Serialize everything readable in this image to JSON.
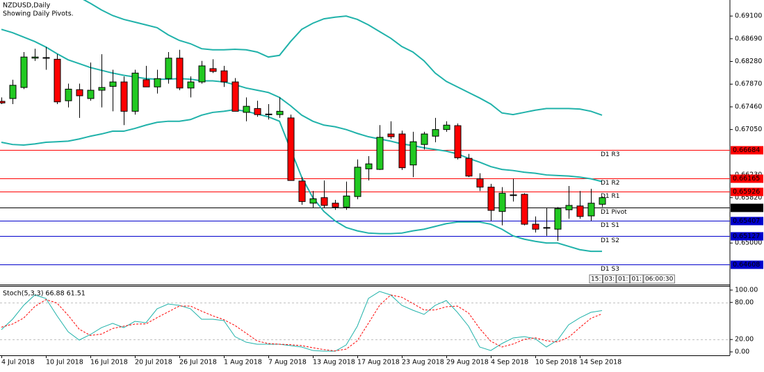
{
  "chart_data": [
    {
      "type": "candlestick",
      "title": "NZDUSD,Daily",
      "subtitle": "Showing Daily Pivots.",
      "categories": [
        "4 Jul 2018",
        null,
        null,
        null,
        "10 Jul 2018",
        null,
        null,
        null,
        "16 Jul 2018",
        null,
        null,
        null,
        "20 Jul 2018",
        null,
        null,
        null,
        "26 Jul 2018",
        null,
        null,
        null,
        "1 Aug 2018",
        null,
        null,
        null,
        "7 Aug 2018",
        null,
        null,
        null,
        "13 Aug 2018",
        null,
        null,
        null,
        "17 Aug 2018",
        null,
        null,
        null,
        "23 Aug 2018",
        null,
        null,
        null,
        "29 Aug 2018",
        null,
        null,
        null,
        "4 Sep 2018",
        null,
        null,
        null,
        "10 Sep 2018",
        null,
        null,
        null,
        "14 Sep 2018",
        null,
        null
      ],
      "open": [
        0.6756,
        0.6761,
        0.6781,
        0.6834,
        0.6835,
        0.6832,
        0.6757,
        0.6777,
        0.6761,
        0.6776,
        0.6783,
        0.6791,
        0.6738,
        0.6795,
        0.6782,
        0.6797,
        0.6834,
        0.678,
        0.6791,
        0.6815,
        0.6811,
        0.6791,
        0.6736,
        0.6743,
        0.6733,
        0.6732,
        0.6726,
        0.6612,
        0.6572,
        0.6582,
        0.6572,
        0.6565,
        0.6584,
        0.6634,
        0.6633,
        0.6697,
        0.6697,
        0.6641,
        0.6678,
        0.6693,
        0.6705,
        0.6712,
        0.6653,
        0.6616,
        0.6601,
        0.6557,
        0.6587,
        0.6588,
        0.6534,
        0.6527,
        0.6525,
        0.656,
        0.6567,
        0.6549,
        0.657
      ],
      "high": [
        0.6763,
        0.6795,
        0.6845,
        0.6851,
        0.6854,
        0.6841,
        0.6788,
        0.6788,
        0.6826,
        0.6841,
        0.6813,
        0.6801,
        0.6813,
        0.682,
        0.6813,
        0.6845,
        0.6849,
        0.6801,
        0.6829,
        0.6832,
        0.682,
        0.6798,
        0.6763,
        0.6757,
        0.6751,
        0.6763,
        0.6732,
        0.6619,
        0.6594,
        0.6613,
        0.6578,
        0.6611,
        0.6651,
        0.6657,
        0.6713,
        0.672,
        0.6703,
        0.6701,
        0.6701,
        0.6726,
        0.672,
        0.6716,
        0.6661,
        0.6626,
        0.6607,
        0.6601,
        0.6616,
        0.659,
        0.6548,
        0.6563,
        0.6565,
        0.6603,
        0.6594,
        0.6598,
        0.6584
      ],
      "low": [
        0.6751,
        0.6751,
        0.6778,
        0.6829,
        0.6813,
        0.6751,
        0.6745,
        0.6726,
        0.6757,
        0.6745,
        0.6738,
        0.6713,
        0.6732,
        0.6782,
        0.677,
        0.6788,
        0.6776,
        0.6763,
        0.6788,
        0.6807,
        0.6782,
        0.6738,
        0.672,
        0.6728,
        0.6723,
        0.6726,
        0.6613,
        0.6569,
        0.6563,
        0.6563,
        0.656,
        0.656,
        0.6579,
        0.6613,
        0.6632,
        0.6688,
        0.6632,
        0.6619,
        0.6669,
        0.6682,
        0.6701,
        0.6651,
        0.6619,
        0.6594,
        0.654,
        0.6532,
        0.6575,
        0.6532,
        0.6519,
        0.6513,
        0.6504,
        0.6544,
        0.6544,
        0.654,
        0.6565
      ],
      "close": [
        0.6753,
        0.6785,
        0.6836,
        0.6836,
        0.6834,
        0.6755,
        0.6778,
        0.6766,
        0.6776,
        0.6781,
        0.6791,
        0.6738,
        0.6807,
        0.6782,
        0.6797,
        0.6834,
        0.678,
        0.6791,
        0.682,
        0.681,
        0.6791,
        0.6738,
        0.6747,
        0.6732,
        0.6732,
        0.6738,
        0.6613,
        0.6575,
        0.658,
        0.6568,
        0.6565,
        0.6585,
        0.6637,
        0.6643,
        0.6691,
        0.6692,
        0.6636,
        0.6683,
        0.6697,
        0.6705,
        0.6713,
        0.6654,
        0.6621,
        0.6601,
        0.6559,
        0.659,
        0.6586,
        0.6534,
        0.6525,
        0.6528,
        0.6562,
        0.6568,
        0.6548,
        0.6572,
        0.6582
      ],
      "up_color": "#22c922",
      "down_color": "#ff0000",
      "bands": [
        {
          "color": "#20b2aa",
          "values": [
            0.6986,
            0.6979,
            0.6971,
            0.6964,
            0.6956,
            0.6951,
            0.6949,
            0.6944,
            0.6933,
            0.6921,
            0.6911,
            0.6904,
            0.6899,
            0.6894,
            0.6889,
            0.6876,
            0.6866,
            0.686,
            0.6851,
            0.6849,
            0.6849,
            0.685,
            0.6849,
            0.6845,
            0.6836,
            0.6839,
            0.6864,
            0.6886,
            0.6897,
            0.6905,
            0.6908,
            0.691,
            0.6904,
            0.6894,
            0.6882,
            0.687,
            0.6855,
            0.6845,
            0.6829,
            0.6807,
            0.6792,
            0.6782,
            0.6772,
            0.6762,
            0.6751,
            0.6735,
            0.6732,
            0.6736,
            0.674,
            0.6743,
            0.6743,
            0.6743,
            0.6742,
            0.6738,
            0.6731
          ]
        },
        {
          "color": "#20b2aa",
          "values": [
            0.6886,
            0.688,
            0.6872,
            0.6864,
            0.6854,
            0.6842,
            0.6831,
            0.6824,
            0.6817,
            0.6812,
            0.6807,
            0.6803,
            0.68,
            0.6797,
            0.6796,
            0.6796,
            0.6797,
            0.6796,
            0.6793,
            0.6793,
            0.6791,
            0.6786,
            0.678,
            0.6776,
            0.6772,
            0.6763,
            0.6748,
            0.6731,
            0.672,
            0.6713,
            0.671,
            0.6705,
            0.6698,
            0.6692,
            0.6688,
            0.6684,
            0.6679,
            0.6676,
            0.6672,
            0.6669,
            0.6666,
            0.6661,
            0.6653,
            0.6646,
            0.6638,
            0.6633,
            0.6631,
            0.6628,
            0.6626,
            0.6623,
            0.6622,
            0.6621,
            0.6619,
            0.6616,
            0.6611
          ]
        },
        {
          "color": "#20b2aa",
          "values": [
            0.6682,
            0.6678,
            0.6677,
            0.6679,
            0.6682,
            0.6683,
            0.6684,
            0.6688,
            0.6693,
            0.6697,
            0.6702,
            0.6702,
            0.6707,
            0.6713,
            0.6718,
            0.672,
            0.672,
            0.6723,
            0.6731,
            0.6736,
            0.6738,
            0.6741,
            0.6738,
            0.6733,
            0.6728,
            0.672,
            0.6669,
            0.6619,
            0.6582,
            0.6557,
            0.654,
            0.6528,
            0.6522,
            0.6518,
            0.6517,
            0.6517,
            0.6518,
            0.6522,
            0.6525,
            0.653,
            0.6535,
            0.6538,
            0.6538,
            0.6538,
            0.6534,
            0.6525,
            0.6513,
            0.6507,
            0.6503,
            0.65,
            0.65,
            0.6494,
            0.6488,
            0.6485,
            0.6485
          ]
        }
      ],
      "levels": [
        {
          "label": "D1 R3",
          "value": 0.66684,
          "color": "#ff0000"
        },
        {
          "label": "D1 R2",
          "value": 0.66165,
          "color": "#ff0000"
        },
        {
          "label": "D1 R1",
          "value": 0.65926,
          "color": "#ff0000"
        },
        {
          "label": "D1 Pivot",
          "value": 0.65646,
          "color": "#000000"
        },
        {
          "label": "D1 S1",
          "value": 0.65407,
          "color": "#0000cc"
        },
        {
          "label": "D1 S2",
          "value": 0.65127,
          "color": "#0000cc"
        },
        {
          "label": "D1 S3",
          "value": 0.64608,
          "color": "#0000cc"
        }
      ],
      "ylim": [
        0.6425,
        0.6939
      ],
      "yticks": [
        {
          "value": 0.691,
          "label": "0.69100"
        },
        {
          "value": 0.6869,
          "label": "0.68690"
        },
        {
          "value": 0.6828,
          "label": "0.68280"
        },
        {
          "value": 0.6787,
          "label": "0.67870"
        },
        {
          "value": 0.6746,
          "label": "0.67460"
        },
        {
          "value": 0.6705,
          "label": "0.67050"
        },
        {
          "value": 0.6623,
          "label": "0.66230"
        },
        {
          "value": 0.6582,
          "label": "0.65820"
        },
        {
          "value": 0.65,
          "label": "0.65000"
        }
      ],
      "timer": [
        "15:",
        "03:",
        "01:",
        "01:",
        "06:00:30"
      ]
    },
    {
      "type": "line",
      "title": "Stoch(5,3,3) 66.88 61.51",
      "series": [
        {
          "color": "#20b2aa",
          "dash": false,
          "values": [
            36.0,
            52.8,
            75.3,
            92.1,
            86.5,
            58.4,
            32.6,
            19.1,
            28.1,
            39.3,
            46.1,
            39.3,
            49.4,
            47.2,
            69.7,
            77.5,
            75.3,
            69.7,
            52.8,
            52.8,
            50.6,
            24.7,
            15.7,
            12.4,
            12.4,
            12.4,
            10.1,
            7.9,
            2.2,
            1.1,
            1.1,
            11.2,
            41.6,
            86.5,
            97.8,
            92.1,
            75.3,
            67.4,
            60.7,
            75.3,
            83.1,
            64.0,
            41.6,
            7.9,
            2.2,
            13.5,
            22.5,
            24.7,
            21.3,
            7.9,
            19.1,
            43.8,
            55.1,
            64.0,
            66.88
          ]
        },
        {
          "color": "#ff0000",
          "dash": true,
          "values": [
            40.0,
            45.0,
            54.7,
            73.4,
            84.6,
            79.0,
            59.2,
            36.7,
            26.6,
            28.8,
            37.8,
            41.6,
            44.9,
            45.3,
            55.4,
            64.8,
            74.2,
            74.2,
            65.9,
            58.4,
            52.1,
            42.7,
            30.3,
            17.6,
            13.5,
            12.4,
            11.6,
            10.1,
            6.7,
            3.7,
            1.5,
            4.5,
            18.0,
            46.4,
            75.3,
            92.1,
            88.4,
            78.3,
            67.8,
            67.8,
            73.0,
            74.1,
            62.9,
            37.8,
            17.2,
            7.9,
            12.7,
            20.2,
            22.8,
            18.0,
            16.1,
            23.6,
            39.3,
            54.3,
            61.51
          ]
        }
      ],
      "levels": [
        80,
        20
      ],
      "ylim": [
        -5.6,
        106.7
      ],
      "yticks": [
        {
          "value": 100,
          "label": "100.00"
        },
        {
          "value": 80,
          "label": "80.00"
        },
        {
          "value": 20,
          "label": "20.00"
        },
        {
          "value": 0,
          "label": "0.00"
        }
      ]
    }
  ]
}
